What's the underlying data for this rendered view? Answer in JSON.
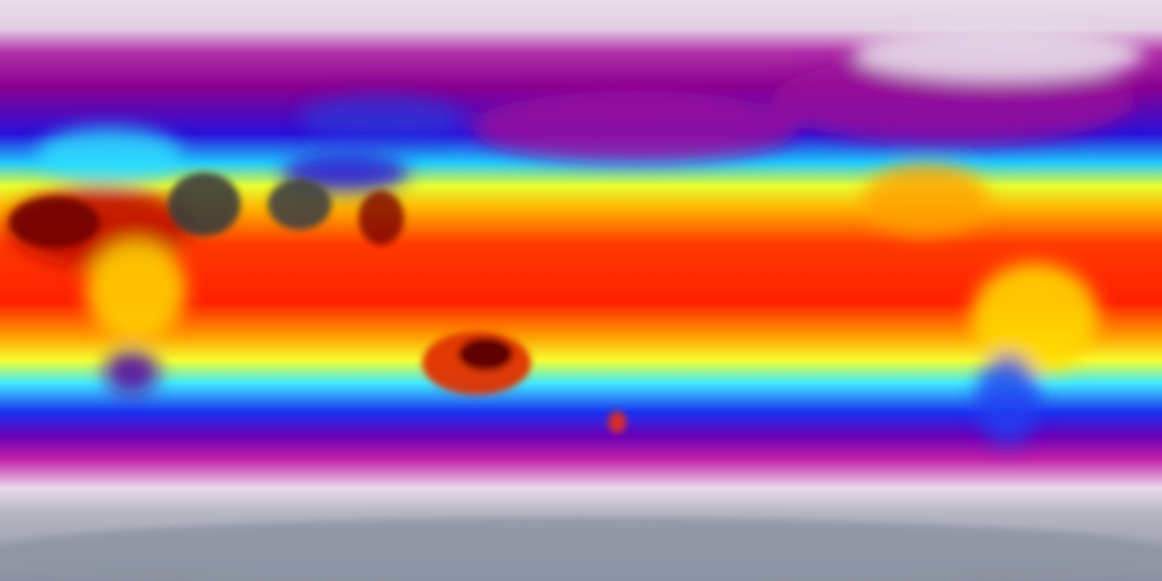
{
  "map": {
    "projection": "equirectangular",
    "colormap": [
      "#8c93a3",
      "#e6dbe6",
      "#b0009a",
      "#1a00e0",
      "#2cf0ff",
      "#ffff2a",
      "#ff8c00",
      "#ff1a00",
      "#7a0000",
      "#3a3a3a"
    ]
  }
}
